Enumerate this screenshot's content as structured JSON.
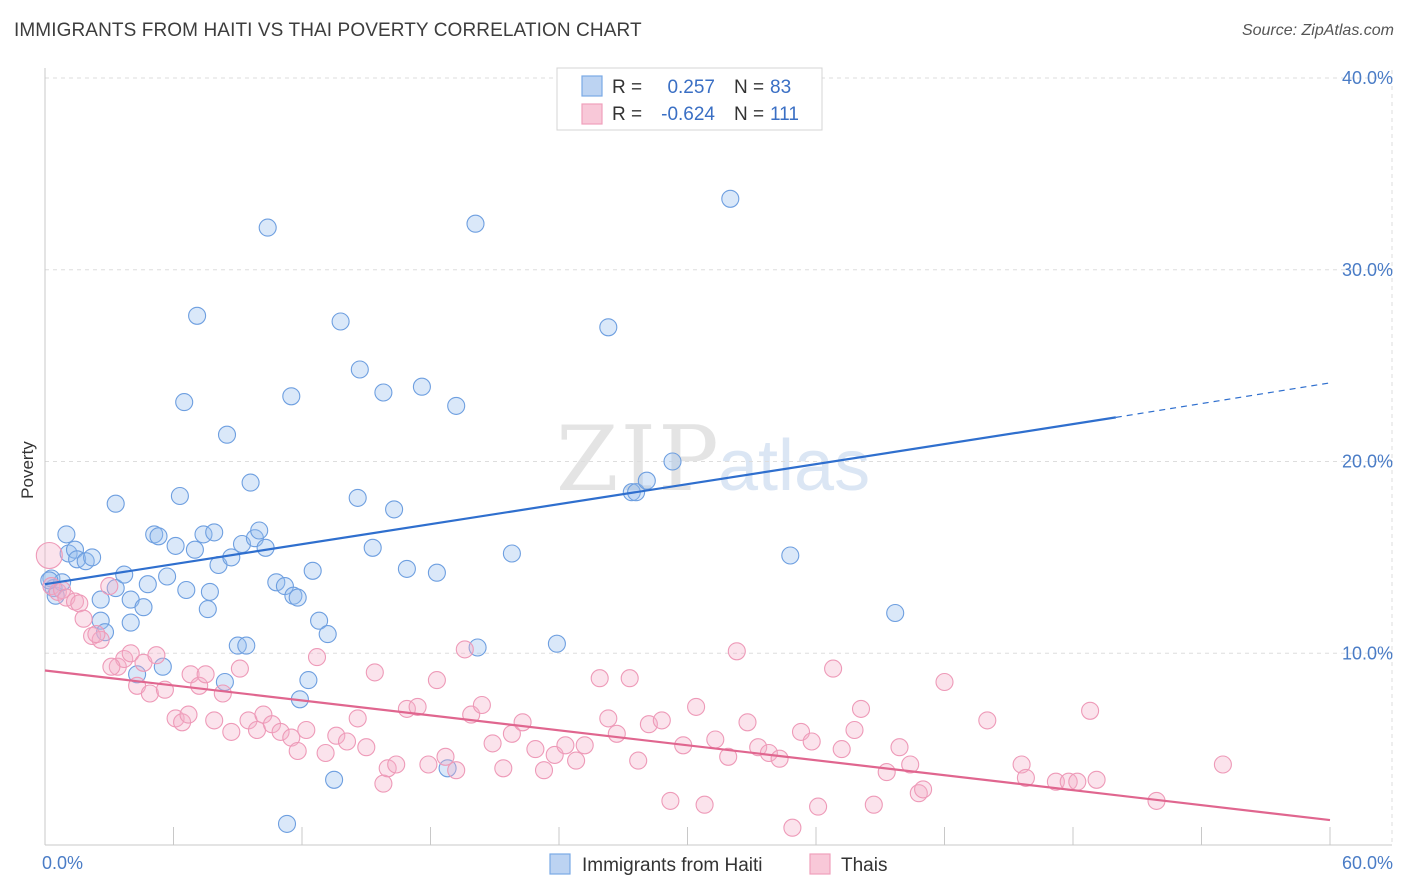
{
  "title": "IMMIGRANTS FROM HAITI VS THAI POVERTY CORRELATION CHART",
  "source": "Source: ZipAtlas.com",
  "watermark": {
    "zip": "ZIP",
    "atlas": "atlas"
  },
  "colors": {
    "blue": "#7aaae6",
    "blue_line": "#2f6fce",
    "pink": "#f0a0bc",
    "pink_line": "#e0668f",
    "tick_text": "#4a7cc6",
    "grid": "#dddddd"
  },
  "legend": {
    "rows": [
      {
        "r_label": "R =",
        "r_value": "0.257",
        "n_label": "N =",
        "n_value": "83"
      },
      {
        "r_label": "R =",
        "r_value": "-0.624",
        "n_label": "N =",
        "n_value": "111"
      }
    ]
  },
  "bottom_legend": [
    "Immigrants from Haiti",
    "Thais"
  ],
  "chart_data": {
    "type": "scatter",
    "title": "IMMIGRANTS FROM HAITI VS THAI POVERTY CORRELATION CHART",
    "xlabel": "",
    "ylabel": "Poverty",
    "xlim": [
      0,
      60
    ],
    "ylim": [
      0,
      40
    ],
    "x_tick_labels": [
      "0.0%",
      "60.0%"
    ],
    "y_ticks": [
      10,
      20,
      30,
      40
    ],
    "y_tick_labels": [
      "10.0%",
      "20.0%",
      "30.0%",
      "40.0%"
    ],
    "grid": true,
    "legend_position": "top-center",
    "series": [
      {
        "name": "Immigrants from Haiti",
        "color": "#7aaae6",
        "trend": {
          "x": [
            0,
            50
          ],
          "y": [
            13.6,
            22.3
          ],
          "extend_dashed_to": [
            60,
            24.1
          ]
        },
        "points": [
          [
            0.3,
            13.9
          ],
          [
            0.4,
            13.4
          ],
          [
            0.5,
            13.0
          ],
          [
            0.8,
            13.7
          ],
          [
            1.0,
            16.2
          ],
          [
            1.1,
            15.2
          ],
          [
            1.4,
            15.4
          ],
          [
            1.5,
            14.9
          ],
          [
            1.9,
            14.8
          ],
          [
            2.2,
            15.0
          ],
          [
            2.6,
            12.8
          ],
          [
            2.6,
            11.7
          ],
          [
            2.8,
            11.1
          ],
          [
            3.3,
            17.8
          ],
          [
            3.3,
            13.4
          ],
          [
            3.7,
            14.1
          ],
          [
            4.0,
            12.8
          ],
          [
            4.0,
            11.6
          ],
          [
            4.3,
            8.9
          ],
          [
            4.6,
            12.4
          ],
          [
            4.8,
            13.6
          ],
          [
            5.1,
            16.2
          ],
          [
            5.3,
            16.1
          ],
          [
            5.5,
            9.3
          ],
          [
            5.7,
            14.0
          ],
          [
            6.1,
            15.6
          ],
          [
            6.3,
            18.2
          ],
          [
            6.5,
            23.1
          ],
          [
            6.6,
            13.3
          ],
          [
            7.0,
            15.4
          ],
          [
            7.1,
            27.6
          ],
          [
            7.4,
            16.2
          ],
          [
            7.6,
            12.3
          ],
          [
            7.7,
            13.2
          ],
          [
            7.9,
            16.3
          ],
          [
            8.1,
            14.6
          ],
          [
            8.4,
            8.5
          ],
          [
            8.5,
            21.4
          ],
          [
            8.7,
            15.0
          ],
          [
            9.0,
            10.4
          ],
          [
            9.2,
            15.7
          ],
          [
            9.4,
            10.4
          ],
          [
            9.6,
            18.9
          ],
          [
            9.8,
            16.0
          ],
          [
            10.0,
            16.4
          ],
          [
            10.3,
            15.5
          ],
          [
            10.4,
            32.2
          ],
          [
            10.8,
            13.7
          ],
          [
            11.2,
            13.5
          ],
          [
            11.5,
            23.4
          ],
          [
            11.6,
            13.0
          ],
          [
            11.8,
            12.9
          ],
          [
            11.9,
            7.6
          ],
          [
            12.3,
            8.6
          ],
          [
            12.5,
            14.3
          ],
          [
            12.8,
            11.7
          ],
          [
            13.2,
            11.0
          ],
          [
            13.5,
            3.4
          ],
          [
            13.8,
            27.3
          ],
          [
            14.6,
            18.1
          ],
          [
            14.7,
            24.8
          ],
          [
            15.3,
            15.5
          ],
          [
            15.8,
            23.6
          ],
          [
            16.3,
            17.5
          ],
          [
            16.9,
            14.4
          ],
          [
            17.6,
            23.9
          ],
          [
            18.3,
            14.2
          ],
          [
            18.8,
            4.0
          ],
          [
            19.2,
            22.9
          ],
          [
            20.1,
            32.4
          ],
          [
            20.2,
            10.3
          ],
          [
            21.8,
            15.2
          ],
          [
            23.9,
            10.5
          ],
          [
            26.3,
            27.0
          ],
          [
            27.4,
            18.4
          ],
          [
            27.6,
            18.4
          ],
          [
            28.1,
            19.0
          ],
          [
            29.3,
            20.0
          ],
          [
            32.0,
            33.7
          ],
          [
            34.8,
            15.1
          ],
          [
            39.7,
            12.1
          ],
          [
            11.3,
            1.1
          ],
          [
            0.2,
            13.8
          ]
        ]
      },
      {
        "name": "Thais",
        "color": "#f0a0bc",
        "trend": {
          "x": [
            0,
            60
          ],
          "y": [
            9.1,
            1.3
          ]
        },
        "points": [
          [
            0.2,
            15.1
          ],
          [
            0.3,
            13.5
          ],
          [
            0.6,
            13.2
          ],
          [
            0.8,
            13.3
          ],
          [
            1.0,
            12.9
          ],
          [
            1.4,
            12.7
          ],
          [
            1.6,
            12.6
          ],
          [
            1.8,
            11.8
          ],
          [
            2.2,
            10.9
          ],
          [
            2.6,
            10.7
          ],
          [
            3.0,
            13.5
          ],
          [
            3.4,
            9.3
          ],
          [
            3.7,
            9.7
          ],
          [
            4.0,
            10.0
          ],
          [
            4.3,
            8.3
          ],
          [
            4.6,
            9.5
          ],
          [
            4.9,
            7.9
          ],
          [
            5.2,
            9.9
          ],
          [
            5.6,
            8.1
          ],
          [
            6.1,
            6.6
          ],
          [
            6.4,
            6.4
          ],
          [
            6.8,
            8.9
          ],
          [
            7.2,
            8.3
          ],
          [
            7.5,
            8.9
          ],
          [
            7.9,
            6.5
          ],
          [
            8.3,
            7.9
          ],
          [
            8.7,
            5.9
          ],
          [
            9.1,
            9.2
          ],
          [
            9.5,
            6.5
          ],
          [
            9.9,
            6.0
          ],
          [
            10.2,
            6.8
          ],
          [
            10.6,
            6.3
          ],
          [
            11.0,
            5.9
          ],
          [
            11.5,
            5.6
          ],
          [
            11.8,
            4.9
          ],
          [
            12.2,
            6.0
          ],
          [
            12.7,
            9.8
          ],
          [
            13.1,
            4.8
          ],
          [
            13.6,
            5.7
          ],
          [
            14.1,
            5.4
          ],
          [
            14.6,
            6.6
          ],
          [
            15.0,
            5.1
          ],
          [
            15.4,
            9.0
          ],
          [
            15.8,
            3.2
          ],
          [
            16.0,
            4.0
          ],
          [
            16.4,
            4.2
          ],
          [
            16.9,
            7.1
          ],
          [
            17.4,
            7.2
          ],
          [
            17.9,
            4.2
          ],
          [
            18.3,
            8.6
          ],
          [
            18.7,
            4.6
          ],
          [
            19.2,
            3.9
          ],
          [
            19.6,
            10.2
          ],
          [
            19.9,
            6.8
          ],
          [
            20.4,
            7.3
          ],
          [
            20.9,
            5.3
          ],
          [
            21.4,
            4.0
          ],
          [
            21.8,
            5.8
          ],
          [
            22.3,
            6.4
          ],
          [
            22.9,
            5.0
          ],
          [
            23.3,
            3.9
          ],
          [
            23.8,
            4.7
          ],
          [
            24.3,
            5.2
          ],
          [
            24.8,
            4.4
          ],
          [
            25.2,
            5.2
          ],
          [
            25.9,
            8.7
          ],
          [
            26.3,
            6.6
          ],
          [
            26.7,
            5.8
          ],
          [
            27.3,
            8.7
          ],
          [
            27.7,
            4.4
          ],
          [
            28.2,
            6.3
          ],
          [
            28.8,
            6.5
          ],
          [
            29.2,
            2.3
          ],
          [
            29.8,
            5.2
          ],
          [
            30.4,
            7.2
          ],
          [
            30.8,
            2.1
          ],
          [
            31.3,
            5.5
          ],
          [
            31.9,
            4.6
          ],
          [
            32.3,
            10.1
          ],
          [
            32.8,
            6.4
          ],
          [
            33.3,
            5.1
          ],
          [
            33.8,
            4.8
          ],
          [
            34.3,
            4.5
          ],
          [
            34.9,
            0.9
          ],
          [
            35.3,
            5.9
          ],
          [
            35.8,
            5.4
          ],
          [
            36.1,
            2.0
          ],
          [
            36.8,
            9.2
          ],
          [
            37.2,
            5.0
          ],
          [
            37.8,
            6.0
          ],
          [
            38.1,
            7.1
          ],
          [
            38.7,
            2.1
          ],
          [
            39.3,
            3.8
          ],
          [
            39.9,
            5.1
          ],
          [
            40.4,
            4.2
          ],
          [
            40.8,
            2.7
          ],
          [
            41.0,
            2.9
          ],
          [
            42.0,
            8.5
          ],
          [
            44.0,
            6.5
          ],
          [
            45.6,
            4.2
          ],
          [
            47.2,
            3.3
          ],
          [
            47.8,
            3.3
          ],
          [
            48.8,
            7.0
          ],
          [
            49.1,
            3.4
          ],
          [
            51.9,
            2.3
          ],
          [
            55.0,
            4.2
          ],
          [
            45.8,
            3.5
          ],
          [
            48.2,
            3.3
          ],
          [
            6.7,
            6.8
          ],
          [
            3.1,
            9.3
          ],
          [
            2.4,
            11.0
          ]
        ]
      }
    ]
  }
}
